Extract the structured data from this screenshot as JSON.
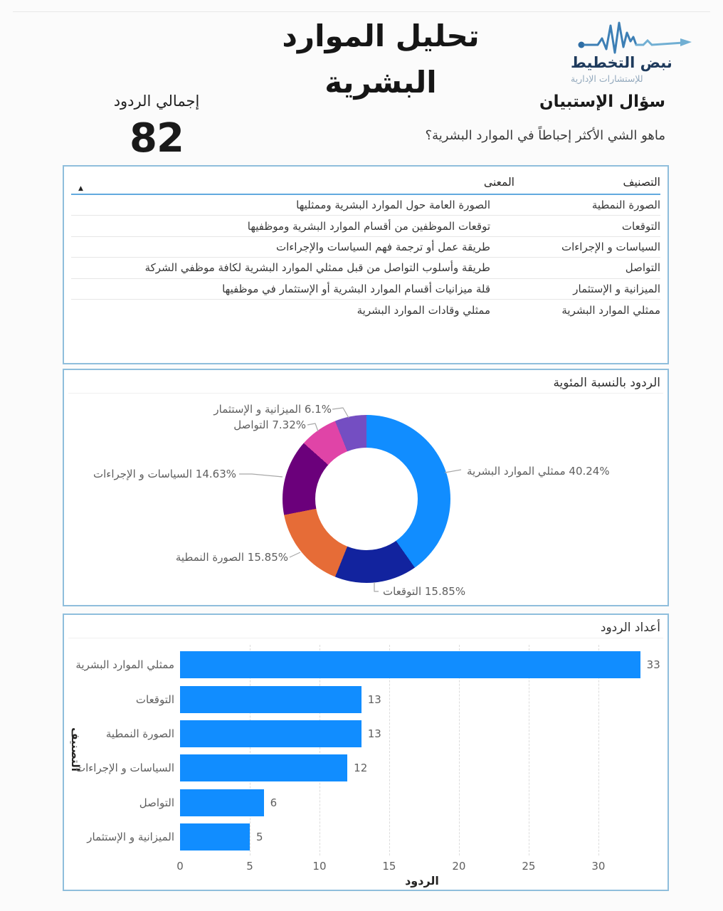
{
  "page": {
    "title": "تحليل الموارد البشرية"
  },
  "logo": {
    "name": "نبض التخطيط",
    "tagline": "للإستشارات الإدارية"
  },
  "kpi": {
    "label": "إجمالي الردود",
    "value": "82"
  },
  "survey": {
    "heading": "سؤال الإستبيان",
    "question": "ماهو الشي الأكثر إحباطاً في الموارد البشرية؟"
  },
  "table": {
    "columns": {
      "category": "التصنيف",
      "meaning": "المعنى"
    },
    "sort_icon": "▲",
    "rows": [
      {
        "category": "الصورة النمطية",
        "meaning": "الصورة العامة حول الموارد البشرية وممثليها"
      },
      {
        "category": "التوقعات",
        "meaning": "توقعات الموظفين من أقسام الموارد البشرية وموظفيها"
      },
      {
        "category": "السياسات و الإجراءات",
        "meaning": "طريقة عمل أو ترجمة فهم السياسات والإجراءات"
      },
      {
        "category": "التواصل",
        "meaning": "طريقة وأسلوب التواصل من قبل ممثلي الموارد البشرية لكافة موظفي الشركة"
      },
      {
        "category": "الميزانية و الإستثمار",
        "meaning": "قلة ميزانيات أقسام الموارد البشرية أو الإستثمار في موظفيها"
      },
      {
        "category": "ممثلي الموارد البشرية",
        "meaning": "ممثلي وقادات الموارد البشرية"
      }
    ]
  },
  "chart_data": [
    {
      "type": "pie",
      "subtype": "donut",
      "title": "الردود بالنسبة المئوية",
      "legend_position": "data-labels",
      "slices": [
        {
          "name": "ممثلي الموارد البشرية",
          "pct": 40.24,
          "label": "40.24% ممثلي الموارد البشرية",
          "color": "#118DFF"
        },
        {
          "name": "التوقعات",
          "pct": 15.85,
          "label": "15.85% التوقعات",
          "color": "#12239E"
        },
        {
          "name": "الصورة النمطية",
          "pct": 15.85,
          "label": "15.85% الصورة النمطية",
          "color": "#E66C37"
        },
        {
          "name": "السياسات و الإجراءات",
          "pct": 14.63,
          "label": "14.63% السياسات و الإجراءات",
          "color": "#6B007B"
        },
        {
          "name": "التواصل",
          "pct": 7.32,
          "label": "7.32% التواصل",
          "color": "#E044A7"
        },
        {
          "name": "الميزانية و الإستثمار",
          "pct": 6.1,
          "label": "6.1% الميزانية و الإستثمار",
          "color": "#744EC2"
        }
      ]
    },
    {
      "type": "bar",
      "orientation": "horizontal",
      "title": "أعداد الردود",
      "categories": [
        "ممثلي الموارد البشرية",
        "التوقعات",
        "الصورة النمطية",
        "السياسات و الإجراءات",
        "التواصل",
        "الميزانية و الإستثمار"
      ],
      "values": [
        33,
        13,
        13,
        12,
        6,
        5
      ],
      "xlabel": "الردود",
      "ylabel": "التصنيف",
      "xlim": [
        0,
        34.7
      ],
      "xticks": [
        0,
        5,
        10,
        15,
        20,
        25,
        30
      ],
      "grid": "vertical-dashed",
      "bar_color": "#118DFF"
    }
  ],
  "colors": {
    "panel_border": "#8FBEDC",
    "table_header_underline": "#62AADF",
    "accent_blue": "#118DFF",
    "label_gray": "#5F5F5F"
  }
}
